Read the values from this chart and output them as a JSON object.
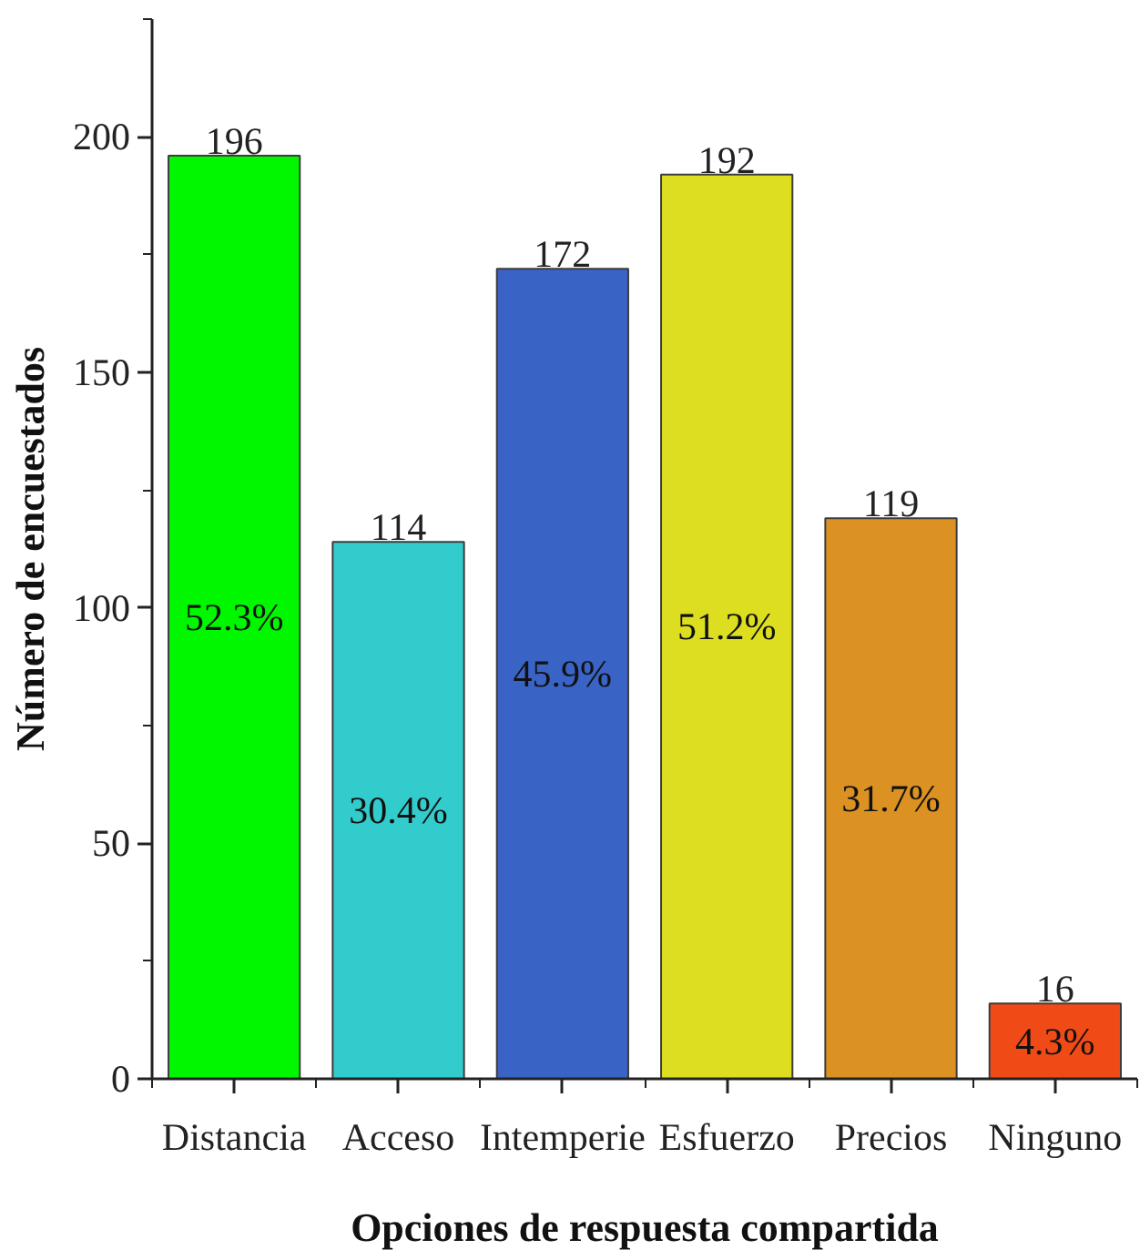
{
  "chart_data": {
    "type": "bar",
    "xlabel": "Opciones de respuesta compartida",
    "ylabel": "Número de encuestados",
    "categories": [
      "Distancia",
      "Acceso",
      "Intemperie",
      "Esfuerzo",
      "Precios",
      "Ninguno"
    ],
    "values": [
      196,
      114,
      172,
      192,
      119,
      16
    ],
    "colors": [
      "#00f700",
      "#33cccc",
      "#3a63c6",
      "#dede20",
      "#dc9222",
      "#f04b16"
    ],
    "ylim": [
      0,
      225
    ],
    "yticks": [
      0,
      50,
      100,
      150,
      200
    ],
    "grid": false,
    "data_labels": true,
    "annotations": [
      "52.3%",
      "30.4%",
      "45.9%",
      "51.2%",
      "31.7%",
      "4.3%"
    ]
  }
}
